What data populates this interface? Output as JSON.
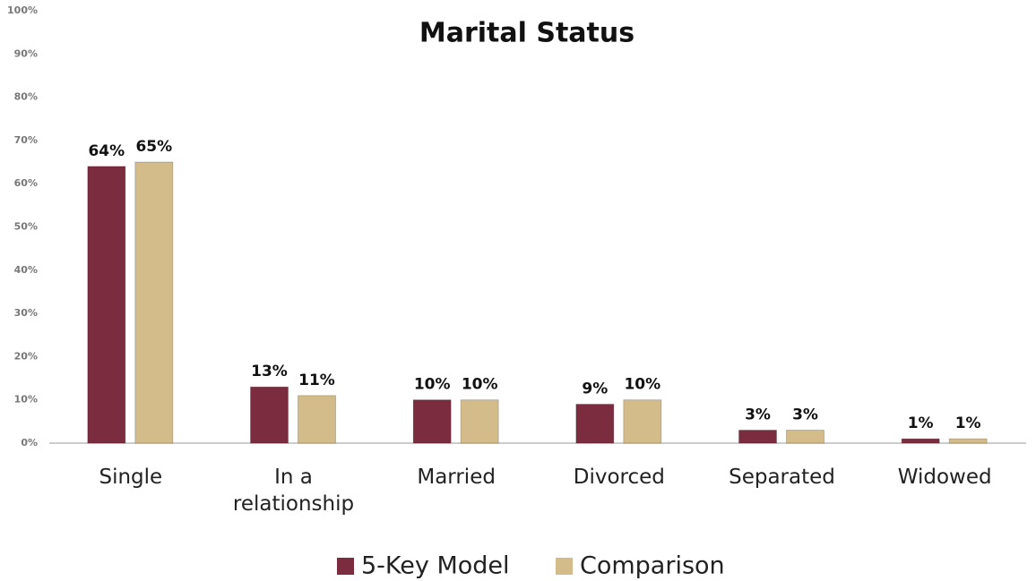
{
  "chart_data": {
    "type": "bar",
    "title": "Marital Status",
    "categories": [
      "Single",
      "In a relationship",
      "Married",
      "Divorced",
      "Separated",
      "Widowed"
    ],
    "series": [
      {
        "name": "5-Key Model",
        "color": "#7b2c3e",
        "values": [
          64,
          13,
          10,
          9,
          3,
          1
        ],
        "value_labels": [
          "64%",
          "13%",
          "10%",
          "9%",
          "3%",
          "1%"
        ]
      },
      {
        "name": "Comparison",
        "color": "#d4bc8a",
        "values": [
          65,
          11,
          10,
          10,
          3,
          1
        ],
        "value_labels": [
          "65%",
          "11%",
          "10%",
          "10%",
          "3%",
          "1%"
        ]
      }
    ],
    "ylim": [
      0,
      100
    ],
    "yticks": [
      {
        "value": 0,
        "label": "0%"
      },
      {
        "value": 10,
        "label": "10%"
      },
      {
        "value": 20,
        "label": "20%"
      },
      {
        "value": 30,
        "label": "30%"
      },
      {
        "value": 40,
        "label": "40%"
      },
      {
        "value": 50,
        "label": "50%"
      },
      {
        "value": 60,
        "label": "60%"
      },
      {
        "value": 70,
        "label": "70%"
      },
      {
        "value": 80,
        "label": "80%"
      },
      {
        "value": 90,
        "label": "90%"
      },
      {
        "value": 100,
        "label": "100%"
      }
    ],
    "legend": "bottom"
  }
}
